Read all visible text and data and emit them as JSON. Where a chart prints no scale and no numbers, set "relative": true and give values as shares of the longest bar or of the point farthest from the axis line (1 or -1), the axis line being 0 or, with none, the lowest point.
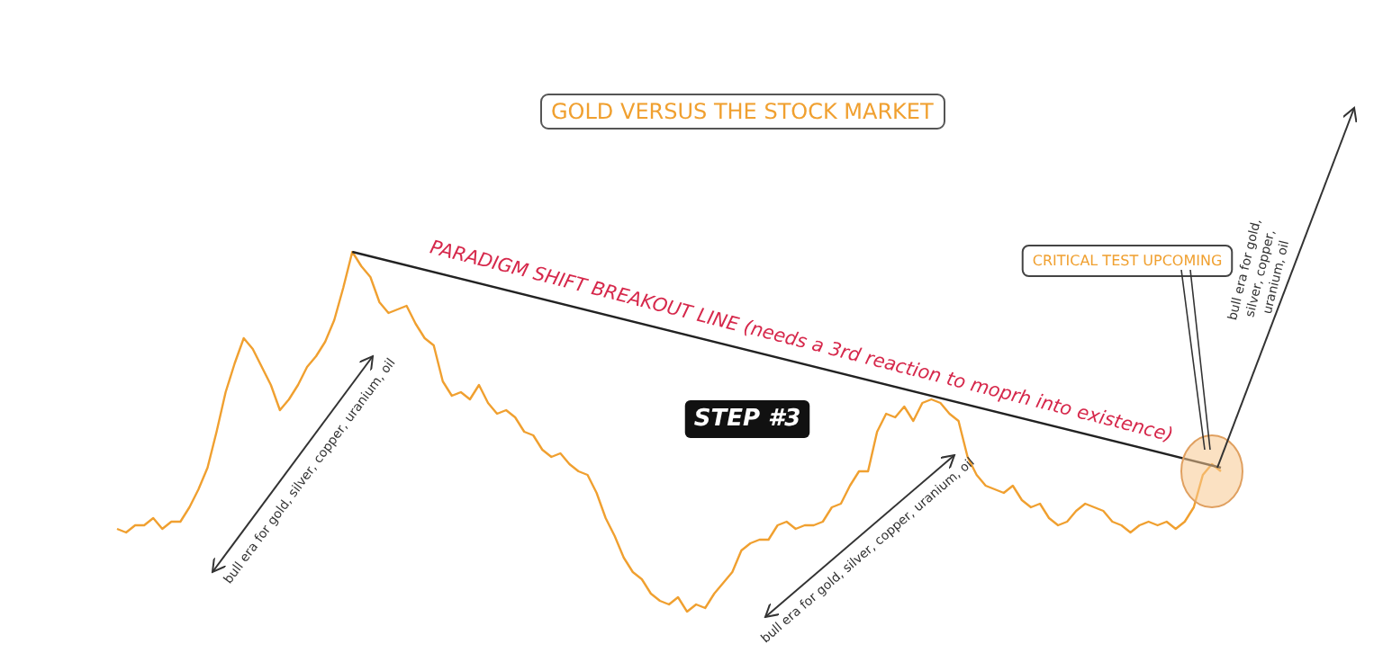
{
  "chart_data": {
    "type": "line",
    "title": "GOLD VERSUS THE STOCK MARKET",
    "relative": true,
    "grid": false,
    "line_style": "solid",
    "annotations": [
      "PARADIGM SHIFT BREAKOUT LINE (needs a 3rd reaction to moprh into existence)",
      "STEP #3",
      "CRITICAL TEST UPCOMING",
      "bull era for gold, silver, copper, uranium, oil",
      "bull era for gold, silver, copper, uranium, oil",
      "bull era for gold, silver, copper, uranium, oil"
    ],
    "categories": [
      null,
      null,
      null,
      null,
      null,
      null,
      null,
      null,
      null,
      null,
      null,
      null,
      null,
      null,
      null,
      null,
      null,
      null,
      null,
      null,
      null,
      null,
      null,
      null,
      null,
      null,
      null,
      null,
      null,
      null,
      null,
      null,
      null,
      null,
      null,
      null,
      null,
      null,
      null,
      null,
      null,
      null,
      null,
      null,
      null,
      null,
      null,
      null,
      null,
      null,
      null,
      null,
      null,
      null,
      null,
      null,
      null,
      null,
      null,
      null,
      null,
      null,
      null,
      null,
      null,
      null,
      null,
      null,
      null,
      null,
      null,
      null,
      null,
      null,
      null,
      null,
      null,
      null,
      null,
      null,
      null,
      null,
      null,
      null,
      null,
      null,
      null,
      null,
      null,
      null,
      null,
      null,
      null,
      null,
      null,
      null,
      null,
      null,
      null,
      null,
      null,
      null,
      null,
      null,
      null,
      null,
      null,
      null,
      null,
      null,
      null,
      null,
      null,
      null,
      null,
      null,
      null,
      null,
      null,
      null,
      null,
      null,
      null
    ],
    "series": [
      {
        "color": "#f0a030",
        "values": [
          0.23,
          0.22,
          0.24,
          0.24,
          0.26,
          0.23,
          0.25,
          0.25,
          0.29,
          0.34,
          0.4,
          0.5,
          0.61,
          0.69,
          0.76,
          0.73,
          0.68,
          0.63,
          0.56,
          0.59,
          0.63,
          0.68,
          0.71,
          0.75,
          0.81,
          0.9,
          1,
          0.96,
          0.93,
          0.86,
          0.83,
          0.84,
          0.85,
          0.8,
          0.76,
          0.74,
          0.64,
          0.6,
          0.61,
          0.59,
          0.63,
          0.58,
          0.55,
          0.56,
          0.54,
          0.5,
          0.49,
          0.45,
          0.43,
          0.44,
          0.41,
          0.39,
          0.38,
          0.33,
          0.26,
          0.21,
          0.15,
          0.11,
          0.09,
          0.05,
          0.03,
          0.02,
          0.04,
          0,
          0.02,
          0.01,
          0.05,
          0.08,
          0.11,
          0.17,
          0.19,
          0.2,
          0.2,
          0.24,
          0.25,
          0.23,
          0.24,
          0.24,
          0.25,
          0.29,
          0.3,
          0.35,
          0.39,
          0.39,
          0.5,
          0.55,
          0.54,
          0.57,
          0.53,
          0.58,
          0.59,
          0.58,
          0.55,
          0.53,
          0.43,
          0.38,
          0.35,
          0.34,
          0.33,
          0.35,
          0.31,
          0.29,
          0.3,
          0.26,
          0.24,
          0.25,
          0.28,
          0.3,
          0.29,
          0.28,
          0.25,
          0.24,
          0.22,
          0.24,
          0.25,
          0.24,
          0.25,
          0.23,
          0.25,
          0.29,
          0.38,
          0.41,
          0.39
        ]
      },
      {
        "color": "#222222",
        "values": [
          null,
          null,
          null,
          null,
          null,
          null,
          null,
          null,
          null,
          null,
          null,
          null,
          null,
          null,
          null,
          null,
          null,
          null,
          null,
          null,
          null,
          null,
          null,
          null,
          null,
          null,
          1,
          null,
          null,
          null,
          null,
          null,
          null,
          null,
          null,
          null,
          null,
          null,
          null,
          null,
          null,
          null,
          null,
          null,
          null,
          null,
          null,
          null,
          null,
          null,
          null,
          null,
          null,
          null,
          null,
          null,
          null,
          null,
          null,
          null,
          null,
          null,
          null,
          null,
          null,
          null,
          null,
          null,
          null,
          null,
          null,
          null,
          null,
          null,
          null,
          null,
          null,
          null,
          null,
          null,
          null,
          null,
          null,
          null,
          null,
          null,
          null,
          null,
          null,
          null,
          null,
          null,
          null,
          null,
          null,
          null,
          null,
          null,
          null,
          null,
          null,
          null,
          null,
          null,
          null,
          null,
          null,
          null,
          null,
          null,
          null,
          null,
          null,
          null,
          null,
          null,
          null,
          null,
          null,
          null,
          null,
          null,
          0.4
        ]
      }
    ]
  }
}
